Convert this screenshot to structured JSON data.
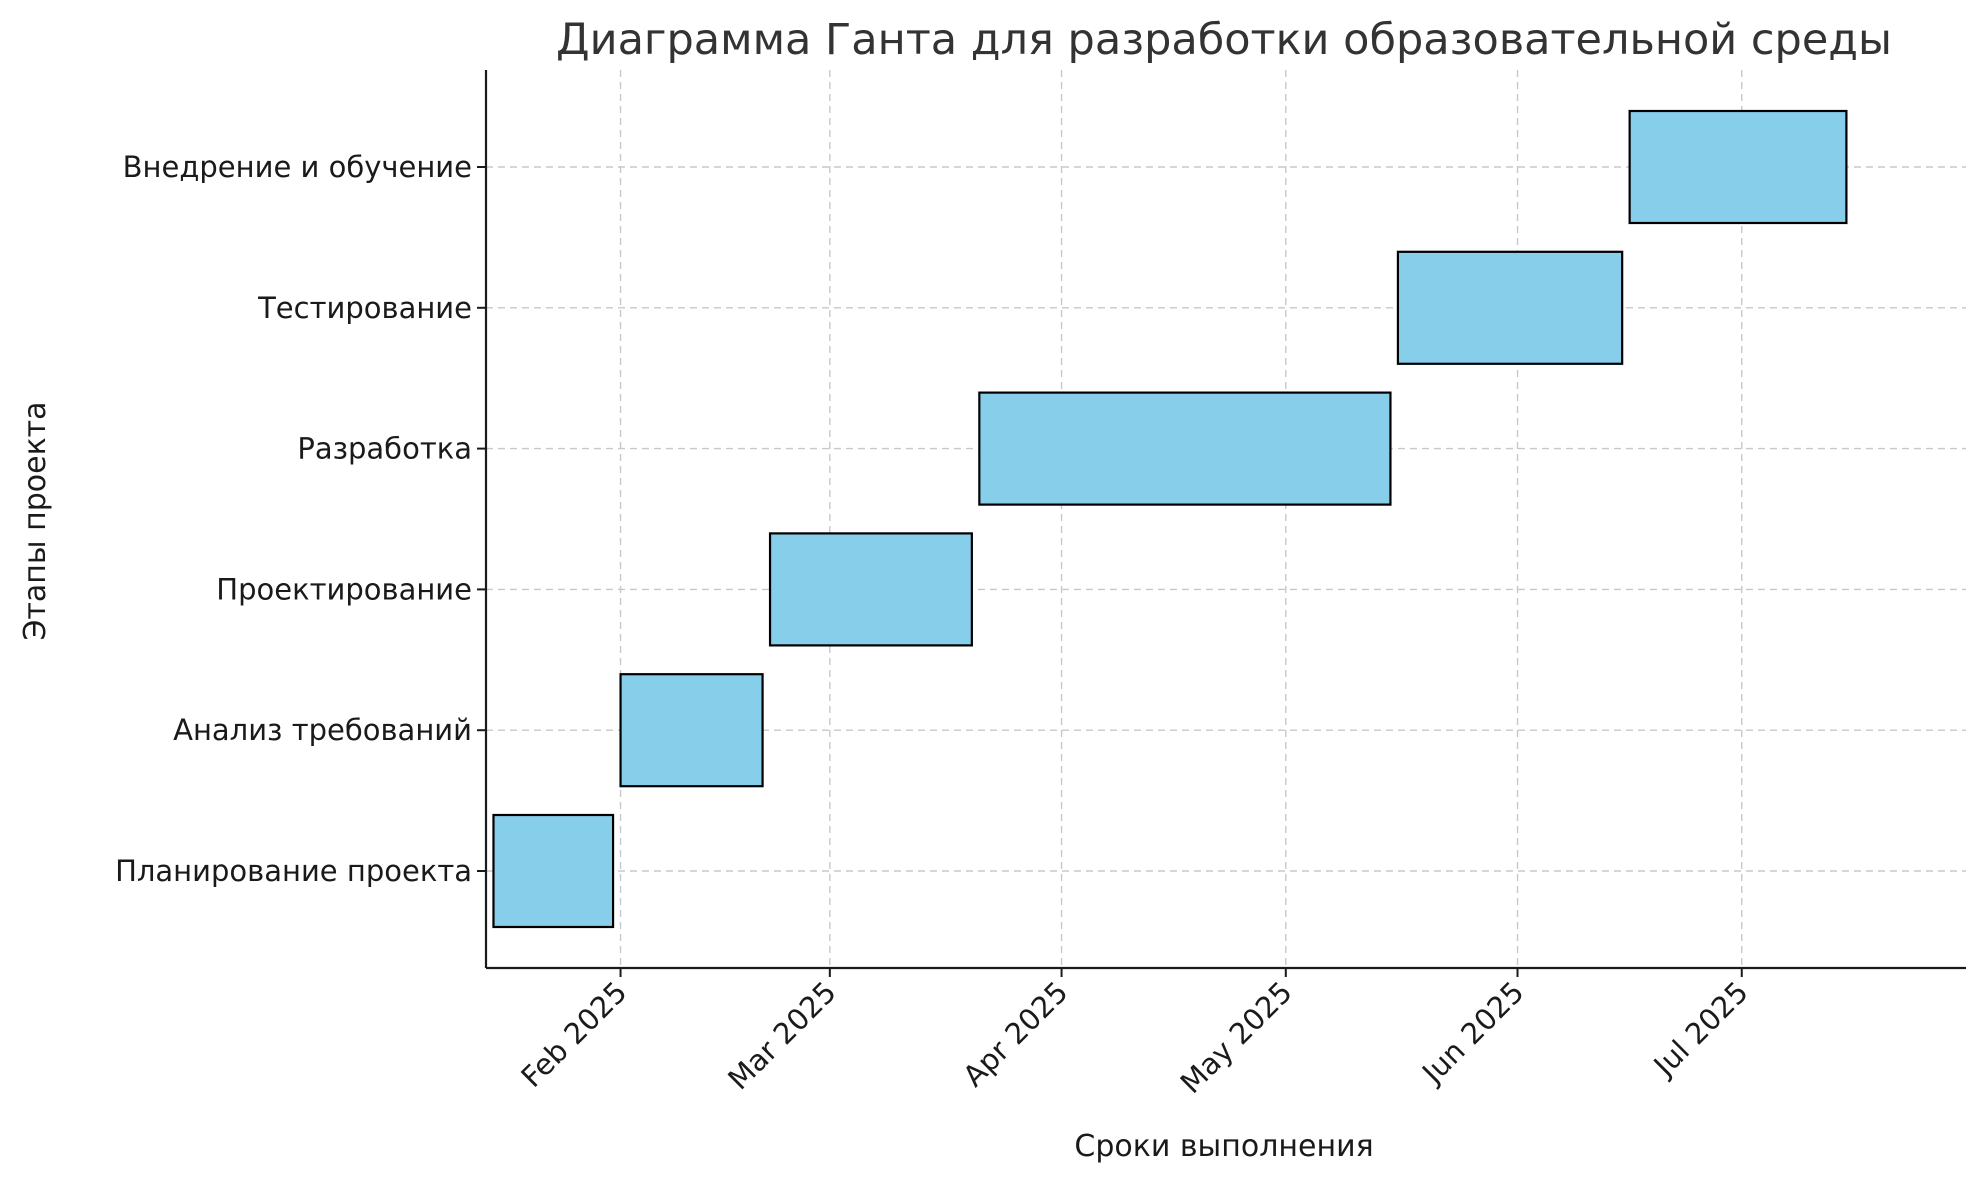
{
  "chart_data": {
    "type": "gantt",
    "title": "Диаграмма Ганта для разработки образовательной среды",
    "xlabel": "Сроки выполнения",
    "ylabel": "Этапы проекта",
    "x_range": [
      "2025-01-14",
      "2025-07-31"
    ],
    "x_ticks": [
      {
        "date": "2025-02-01",
        "label": "Feb 2025"
      },
      {
        "date": "2025-03-01",
        "label": "Mar 2025"
      },
      {
        "date": "2025-04-01",
        "label": "Apr 2025"
      },
      {
        "date": "2025-05-01",
        "label": "May 2025"
      },
      {
        "date": "2025-06-01",
        "label": "Jun 2025"
      },
      {
        "date": "2025-07-01",
        "label": "Jul 2025"
      }
    ],
    "tasks": [
      {
        "name": "Планирование проекта",
        "start": "2025-01-15",
        "end": "2025-01-31"
      },
      {
        "name": "Анализ требований",
        "start": "2025-02-01",
        "end": "2025-02-20"
      },
      {
        "name": "Проектирование",
        "start": "2025-02-21",
        "end": "2025-03-20"
      },
      {
        "name": "Разработка",
        "start": "2025-03-21",
        "end": "2025-05-15"
      },
      {
        "name": "Тестирование",
        "start": "2025-05-16",
        "end": "2025-06-15"
      },
      {
        "name": "Внедрение и обучение",
        "start": "2025-06-16",
        "end": "2025-07-15"
      }
    ],
    "grid": true,
    "bar_color": "#87ceeb",
    "bar_edge_color": "#000000"
  }
}
